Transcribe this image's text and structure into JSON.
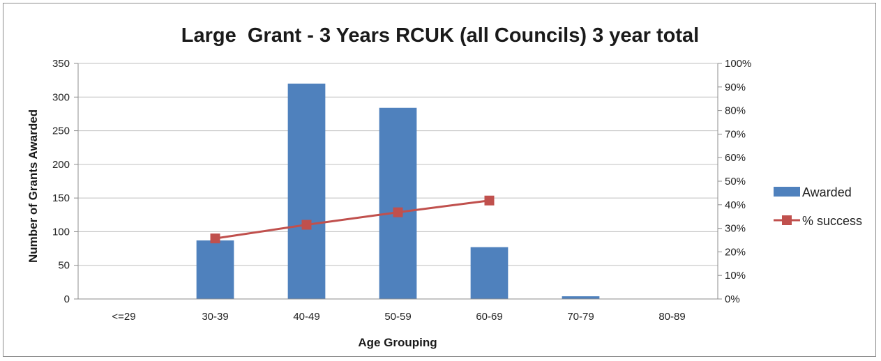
{
  "chart_data": {
    "type": "bar",
    "title": "Large  Grant - 3 Years RCUK (all Councils) 3 year total",
    "xlabel": "Age Grouping",
    "ylabel": "Number of Grants Awarded",
    "categories": [
      "<=29",
      "30-39",
      "40-49",
      "50-59",
      "60-69",
      "70-79",
      "80-89"
    ],
    "ylim": [
      0,
      350
    ],
    "yticks": [
      0,
      50,
      100,
      150,
      200,
      250,
      300,
      350
    ],
    "y2lim": [
      0,
      100
    ],
    "y2ticks": [
      "0%",
      "10%",
      "20%",
      "30%",
      "40%",
      "50%",
      "60%",
      "70%",
      "80%",
      "90%",
      "100%"
    ],
    "grid": true,
    "legend_position": "right",
    "series": [
      {
        "name": "Awarded",
        "type": "bar",
        "axis": "left",
        "color": "#4f81bd",
        "values": [
          0,
          87,
          320,
          284,
          77,
          4,
          0
        ]
      },
      {
        "name": "% success",
        "type": "line",
        "axis": "right",
        "color": "#c0504d",
        "marker": "square",
        "values": [
          null,
          25.7,
          31.5,
          36.8,
          41.8,
          null,
          null
        ]
      }
    ]
  }
}
